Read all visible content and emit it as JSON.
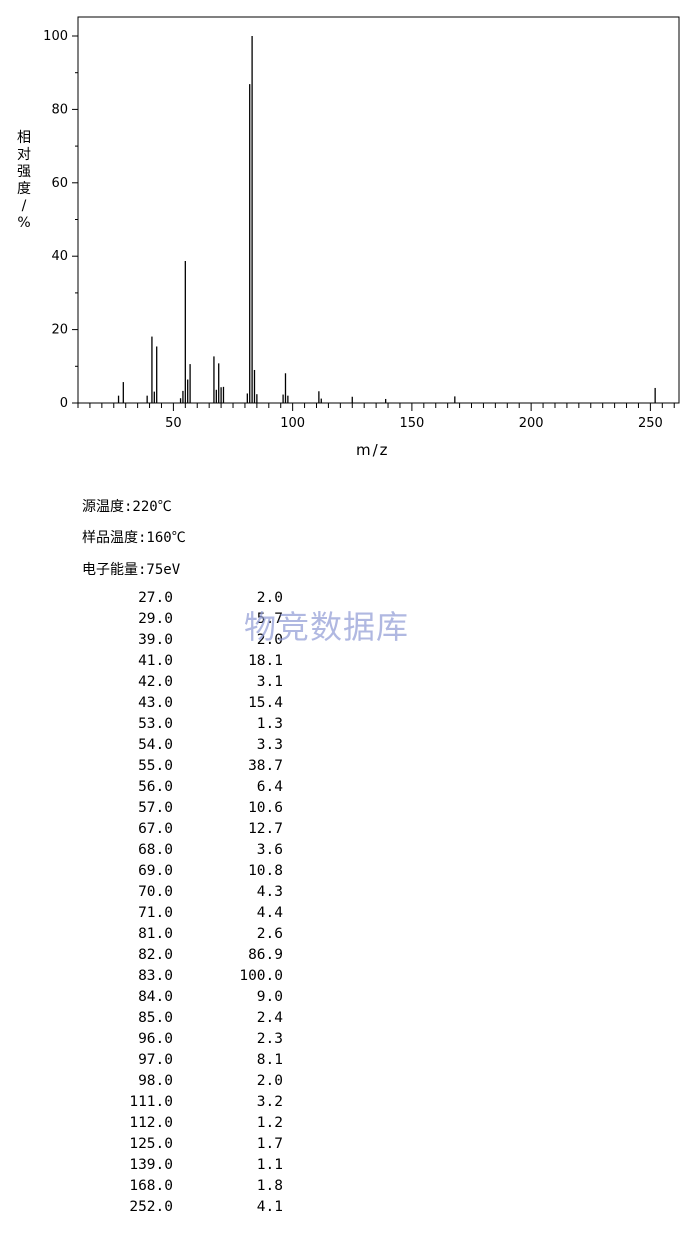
{
  "chart_data": {
    "type": "bar",
    "xlabel": "m/z",
    "ylabel": "相对强度/%",
    "xlim": [
      10,
      262
    ],
    "ylim": [
      0,
      100
    ],
    "x_ticks": [
      50,
      100,
      150,
      200,
      250
    ],
    "y_ticks": [
      0,
      20,
      40,
      60,
      80,
      100
    ],
    "grid": false,
    "peaks": [
      [
        27,
        2.0
      ],
      [
        29,
        5.7
      ],
      [
        39,
        2.0
      ],
      [
        41,
        18.1
      ],
      [
        42,
        3.1
      ],
      [
        43,
        15.4
      ],
      [
        53,
        1.3
      ],
      [
        54,
        3.3
      ],
      [
        55,
        38.7
      ],
      [
        56,
        6.4
      ],
      [
        57,
        10.6
      ],
      [
        67,
        12.7
      ],
      [
        68,
        3.6
      ],
      [
        69,
        10.8
      ],
      [
        70,
        4.3
      ],
      [
        71,
        4.4
      ],
      [
        81,
        2.6
      ],
      [
        82,
        86.9
      ],
      [
        83,
        100.0
      ],
      [
        84,
        9.0
      ],
      [
        85,
        2.4
      ],
      [
        96,
        2.3
      ],
      [
        97,
        8.1
      ],
      [
        98,
        2.0
      ],
      [
        111,
        3.2
      ],
      [
        112,
        1.2
      ],
      [
        125,
        1.7
      ],
      [
        139,
        1.1
      ],
      [
        168,
        1.8
      ],
      [
        252,
        4.1
      ]
    ]
  },
  "conditions": {
    "source_temp": "源温度:220℃",
    "sample_temp": "样品温度:160℃",
    "electron_energy": "电子能量:75eV"
  },
  "table": [
    {
      "mz": "27.0",
      "ab": "2.0"
    },
    {
      "mz": "29.0",
      "ab": "5.7"
    },
    {
      "mz": "39.0",
      "ab": "2.0"
    },
    {
      "mz": "41.0",
      "ab": "18.1"
    },
    {
      "mz": "42.0",
      "ab": "3.1"
    },
    {
      "mz": "43.0",
      "ab": "15.4"
    },
    {
      "mz": "53.0",
      "ab": "1.3"
    },
    {
      "mz": "54.0",
      "ab": "3.3"
    },
    {
      "mz": "55.0",
      "ab": "38.7"
    },
    {
      "mz": "56.0",
      "ab": "6.4"
    },
    {
      "mz": "57.0",
      "ab": "10.6"
    },
    {
      "mz": "67.0",
      "ab": "12.7"
    },
    {
      "mz": "68.0",
      "ab": "3.6"
    },
    {
      "mz": "69.0",
      "ab": "10.8"
    },
    {
      "mz": "70.0",
      "ab": "4.3"
    },
    {
      "mz": "71.0",
      "ab": "4.4"
    },
    {
      "mz": "81.0",
      "ab": "2.6"
    },
    {
      "mz": "82.0",
      "ab": "86.9"
    },
    {
      "mz": "83.0",
      "ab": "100.0"
    },
    {
      "mz": "84.0",
      "ab": "9.0"
    },
    {
      "mz": "85.0",
      "ab": "2.4"
    },
    {
      "mz": "96.0",
      "ab": "2.3"
    },
    {
      "mz": "97.0",
      "ab": "8.1"
    },
    {
      "mz": "98.0",
      "ab": "2.0"
    },
    {
      "mz": "111.0",
      "ab": "3.2"
    },
    {
      "mz": "112.0",
      "ab": "1.2"
    },
    {
      "mz": "125.0",
      "ab": "1.7"
    },
    {
      "mz": "139.0",
      "ab": "1.1"
    },
    {
      "mz": "168.0",
      "ab": "1.8"
    },
    {
      "mz": "252.0",
      "ab": "4.1"
    }
  ],
  "watermark": "物竞数据库"
}
